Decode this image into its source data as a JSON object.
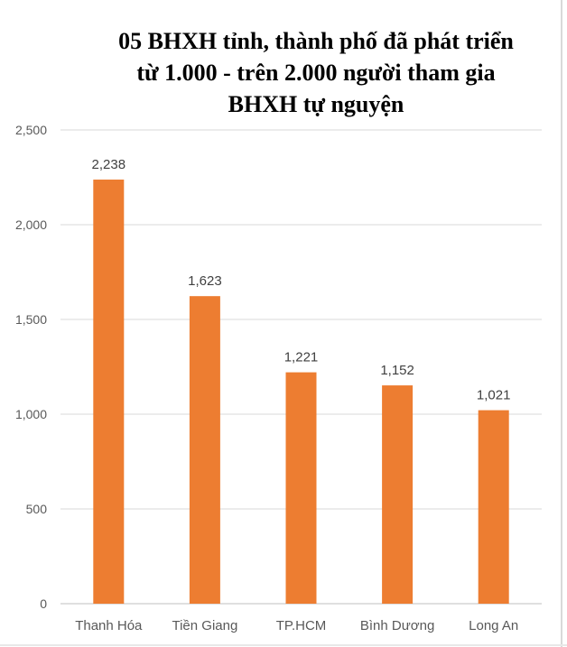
{
  "chart_data": {
    "type": "bar",
    "title_lines": [
      "05 BHXH tỉnh, thành phố đã phát triển",
      "từ 1.000 - trên 2.000 người tham gia",
      "BHXH tự nguyện"
    ],
    "categories": [
      "Thanh Hóa",
      "Tiền Giang",
      "TP.HCM",
      "Bình Dương",
      "Long An"
    ],
    "values": [
      2238,
      1623,
      1221,
      1152,
      1021
    ],
    "data_labels": [
      "2,238",
      "1,623",
      "1,221",
      "1,152",
      "1,021"
    ],
    "yticks": [
      0,
      500,
      1000,
      1500,
      2000,
      2500
    ],
    "ytick_labels": [
      "0",
      "500",
      "1,000",
      "1,500",
      "2,000",
      "2,500"
    ],
    "ylim": [
      0,
      2500
    ],
    "xlabel": "",
    "ylabel": "",
    "grid": true,
    "legend": "none",
    "bar_color": "#ED7D31"
  }
}
